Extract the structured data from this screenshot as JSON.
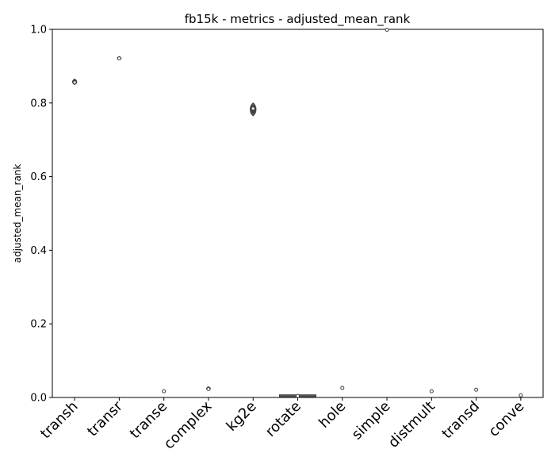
{
  "chart_data": {
    "type": "violin",
    "title": "fb15k - metrics - adjusted_mean_rank",
    "xlabel": "",
    "ylabel": "adjusted_mean_rank",
    "ylim": [
      0.0,
      1.0
    ],
    "yticks": [
      "0.0",
      "0.2",
      "0.4",
      "0.6",
      "0.8",
      "1.0"
    ],
    "grid": false,
    "legend": "none",
    "categories": [
      "transh",
      "transr",
      "transe",
      "complex",
      "kg2e",
      "rotate",
      "hole",
      "simple",
      "distmult",
      "transd",
      "conve"
    ],
    "series": [
      {
        "category": "transh",
        "min": 0.85,
        "max": 0.865,
        "median": 0.856
      },
      {
        "category": "transr",
        "min": 0.917,
        "max": 0.926,
        "median": 0.921
      },
      {
        "category": "transe",
        "min": 0.016,
        "max": 0.018,
        "median": 0.017
      },
      {
        "category": "complex",
        "min": 0.019,
        "max": 0.029,
        "median": 0.023
      },
      {
        "category": "kg2e",
        "min": 0.765,
        "max": 0.8,
        "median": 0.785
      },
      {
        "category": "rotate",
        "min": 0.004,
        "max": 0.005,
        "median": 0.004
      },
      {
        "category": "hole",
        "min": 0.026,
        "max": 0.026,
        "median": 0.026
      },
      {
        "category": "simple",
        "min": 0.999,
        "max": 0.999,
        "median": 0.999
      },
      {
        "category": "distmult",
        "min": 0.017,
        "max": 0.017,
        "median": 0.017
      },
      {
        "category": "transd",
        "min": 0.021,
        "max": 0.021,
        "median": 0.021
      },
      {
        "category": "conve",
        "min": 0.005,
        "max": 0.007,
        "median": 0.006
      }
    ],
    "colors": {
      "axis": "#000000",
      "violin_edge": "#3f3f3f",
      "violin_fill": "#5a5a5a",
      "median_fill": "#ffffff"
    }
  }
}
